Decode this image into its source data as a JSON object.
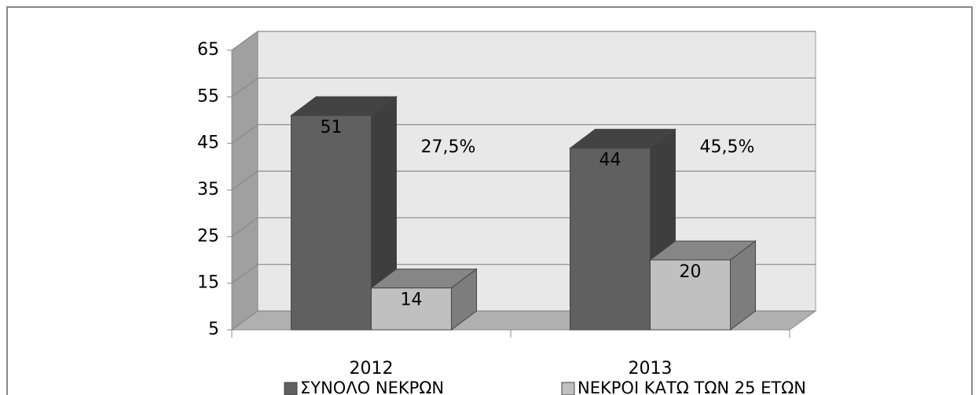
{
  "chart_data": {
    "type": "bar",
    "categories": [
      "2012",
      "2013"
    ],
    "series": [
      {
        "name": "ΣΥΝΟΛΟ ΝΕΚΡΩΝ",
        "color": "#606060",
        "values": [
          51,
          44
        ]
      },
      {
        "name": "ΝΕΚΡΟΙ ΚΑΤΩ ΤΩΝ 25 ΕΤΩΝ",
        "color": "#c0c0c0",
        "values": [
          14,
          20
        ]
      }
    ],
    "annotations": [
      "27,5%",
      "45,5%"
    ],
    "ylim": [
      5,
      65
    ],
    "yticks": [
      5,
      15,
      25,
      35,
      45,
      55,
      65
    ],
    "grid": true,
    "legend": "bottom"
  }
}
